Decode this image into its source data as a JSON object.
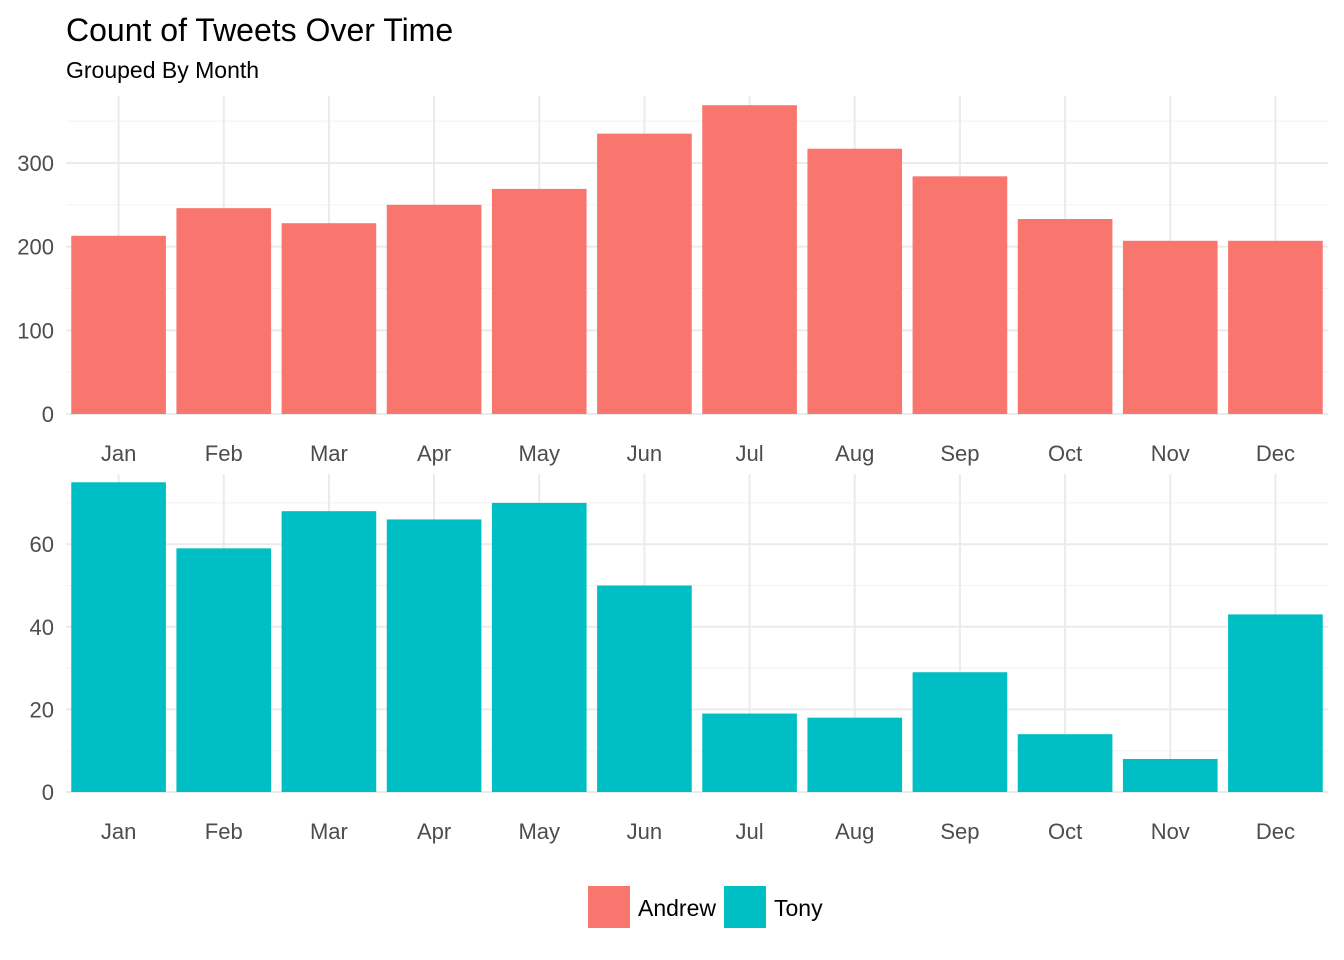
{
  "chart_data": {
    "type": "bar",
    "title": "Count of Tweets Over Time",
    "subtitle": "Grouped By Month",
    "categories": [
      "Jan",
      "Feb",
      "Mar",
      "Apr",
      "May",
      "Jun",
      "Jul",
      "Aug",
      "Sep",
      "Oct",
      "Nov",
      "Dec"
    ],
    "facets": [
      {
        "series": "Andrew",
        "color": "#F8766D",
        "values": [
          213,
          246,
          228,
          250,
          269,
          335,
          369,
          317,
          284,
          233,
          207,
          207
        ],
        "ylim": [
          0,
          380
        ],
        "yticks": [
          0,
          100,
          200,
          300
        ],
        "ytick_labels": [
          "0",
          "100",
          "200",
          "300"
        ]
      },
      {
        "series": "Tony",
        "color": "#00BFC4",
        "values": [
          75,
          59,
          68,
          66,
          70,
          50,
          19,
          18,
          29,
          14,
          8,
          43
        ],
        "ylim": [
          0,
          77
        ],
        "yticks": [
          0,
          20,
          40,
          60
        ],
        "ytick_labels": [
          "0",
          "20",
          "40",
          "60"
        ]
      }
    ],
    "legend": {
      "position": "bottom",
      "entries": [
        {
          "name": "Andrew",
          "color": "#F8766D"
        },
        {
          "name": "Tony",
          "color": "#00BFC4"
        }
      ]
    },
    "grid": true,
    "xlabel": "",
    "ylabel": ""
  }
}
